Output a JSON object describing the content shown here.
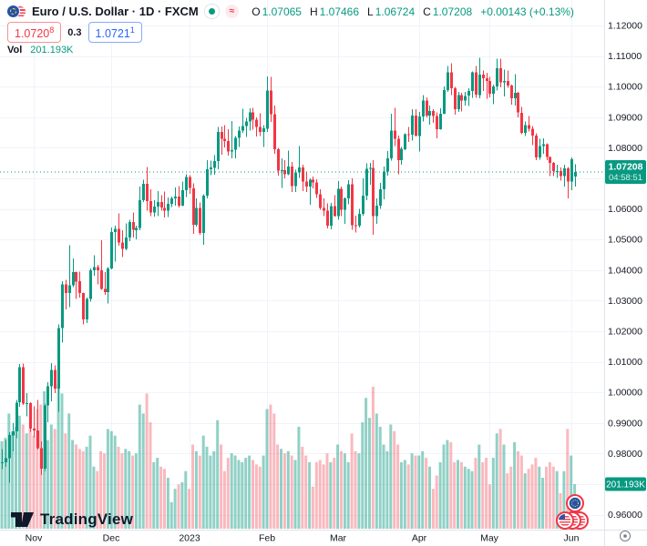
{
  "header": {
    "symbol_title": "Euro / U.S. Dollar · 1D · FXCM",
    "status_approx": "≈",
    "ohlc": {
      "o_label": "O",
      "o": "1.07065",
      "h_label": "H",
      "h": "1.07466",
      "l_label": "L",
      "l": "1.06724",
      "c_label": "C",
      "c": "1.07208",
      "change": "+0.00143 (+0.13%)"
    },
    "bid": "1.0720",
    "bid_sup": "8",
    "spread": "0.3",
    "ask": "1.0721",
    "ask_sup": "1",
    "vol_label": "Vol",
    "vol_value": "201.193K"
  },
  "price_axis": {
    "labels": [
      "1.12000",
      "1.11000",
      "1.10000",
      "1.09000",
      "1.08000",
      "1.07000",
      "1.06000",
      "1.05000",
      "1.04000",
      "1.03000",
      "1.02000",
      "1.01000",
      "1.00000",
      "0.99000",
      "0.98000",
      "0.97000",
      "0.96000"
    ],
    "last_price_badge": {
      "price": "1.07208",
      "countdown": "04:58:51"
    },
    "volume_badge": "201.193K"
  },
  "time_axis": {
    "labels": [
      "Nov",
      "Dec",
      "2023",
      "Feb",
      "Mar",
      "Apr",
      "May",
      "Jun"
    ]
  },
  "footer": {
    "logo_text": "TradingView"
  },
  "colors": {
    "up": "#089981",
    "down": "#F23645",
    "vol_up": "rgba(8,153,129,0.45)",
    "vol_down": "rgba(242,54,69,0.35)",
    "grid": "#f0f3fa",
    "separator": "#e0e3eb",
    "axis_text": "#131722",
    "badge_bg": "#089981",
    "bid_color": "#F23645",
    "ask_color": "#2962FF"
  },
  "chart_data": {
    "type": "candlestick",
    "symbol": "EURUSD",
    "title": "Euro / U.S. Dollar",
    "timeframe": "1D",
    "exchange": "FXCM",
    "last_price": 1.07208,
    "countdown": "04:58:51",
    "current_volume_k": 201.193,
    "volume_unit": "K",
    "axis": {
      "y_min": 0.96,
      "y_max": 1.12,
      "y_step": 0.01
    },
    "legend_position": "top-left",
    "grid": true,
    "candles": [
      [
        "10-19",
        0.977,
        0.9815,
        0.9749,
        0.9772,
        395
      ],
      [
        "10-20",
        0.9772,
        0.9845,
        0.9756,
        0.9785,
        410
      ],
      [
        "10-21",
        0.9785,
        0.987,
        0.9705,
        0.986,
        520
      ],
      [
        "10-24",
        0.986,
        0.9899,
        0.9807,
        0.9873,
        440
      ],
      [
        "10-25",
        0.9873,
        0.9976,
        0.985,
        0.9967,
        460
      ],
      [
        "10-26",
        0.9967,
        1.0093,
        0.9953,
        1.0082,
        510
      ],
      [
        "10-27",
        1.0082,
        1.0094,
        0.9959,
        0.9963,
        470
      ],
      [
        "10-28",
        0.9963,
        0.9997,
        0.9921,
        0.9965,
        430
      ],
      [
        "10-31",
        0.9965,
        0.9968,
        0.9872,
        0.9881,
        450
      ],
      [
        "11-01",
        0.9881,
        0.9954,
        0.9853,
        0.9876,
        420
      ],
      [
        "11-02",
        0.9876,
        0.9976,
        0.9813,
        0.9817,
        540
      ],
      [
        "11-03",
        0.9817,
        0.984,
        0.973,
        0.975,
        560
      ],
      [
        "11-04",
        0.975,
        0.9963,
        0.9741,
        0.9957,
        620
      ],
      [
        "11-07",
        0.9957,
        1.0034,
        0.9902,
        1.002,
        400
      ],
      [
        "11-08",
        1.002,
        1.0096,
        0.9971,
        1.0074,
        470
      ],
      [
        "11-09",
        1.0074,
        1.0088,
        0.9998,
        1.0012,
        450
      ],
      [
        "11-10",
        1.0012,
        1.0222,
        0.9936,
        1.021,
        650
      ],
      [
        "11-11",
        1.021,
        1.0364,
        1.0163,
        1.0353,
        610
      ],
      [
        "11-14",
        1.0353,
        1.0368,
        1.0271,
        1.0325,
        430
      ],
      [
        "11-15",
        1.0325,
        1.0481,
        1.0279,
        1.035,
        520
      ],
      [
        "11-16",
        1.035,
        1.0438,
        1.0344,
        1.0393,
        400
      ],
      [
        "11-17",
        1.0393,
        1.0395,
        1.0305,
        1.0363,
        380
      ],
      [
        "11-18",
        1.0363,
        1.0395,
        1.031,
        1.0325,
        360
      ],
      [
        "11-21",
        1.0325,
        1.0327,
        1.0222,
        1.0239,
        350
      ],
      [
        "11-22",
        1.0239,
        1.031,
        1.0226,
        1.0305,
        370
      ],
      [
        "11-23",
        1.0305,
        1.0405,
        1.0296,
        1.0399,
        420
      ],
      [
        "11-24",
        1.0399,
        1.0448,
        1.0382,
        1.041,
        280
      ],
      [
        "11-25",
        1.041,
        1.0417,
        1.0354,
        1.04,
        260
      ],
      [
        "11-28",
        1.04,
        1.0497,
        1.0335,
        1.0339,
        350
      ],
      [
        "11-29",
        1.0339,
        1.0394,
        1.0319,
        1.0328,
        340
      ],
      [
        "11-30",
        1.0328,
        1.041,
        1.029,
        1.0406,
        450
      ],
      [
        "12-01",
        1.0406,
        1.0539,
        1.0402,
        1.0525,
        440
      ],
      [
        "12-02",
        1.0525,
        1.0545,
        1.0428,
        1.0535,
        420
      ],
      [
        "12-05",
        1.0535,
        1.0585,
        1.048,
        1.049,
        370
      ],
      [
        "12-06",
        1.049,
        1.0531,
        1.0443,
        1.0469,
        340
      ],
      [
        "12-07",
        1.0469,
        1.0552,
        1.0465,
        1.0506,
        360
      ],
      [
        "12-08",
        1.0506,
        1.0564,
        1.0494,
        1.0557,
        350
      ],
      [
        "12-09",
        1.0557,
        1.0589,
        1.0507,
        1.0531,
        330
      ],
      [
        "12-12",
        1.0531,
        1.0545,
        1.05,
        1.0538,
        340
      ],
      [
        "12-13",
        1.0538,
        1.0673,
        1.053,
        1.0629,
        560
      ],
      [
        "12-14",
        1.0629,
        1.0695,
        1.0622,
        1.0682,
        520
      ],
      [
        "12-15",
        1.0682,
        1.0737,
        1.0594,
        1.0626,
        610
      ],
      [
        "12-16",
        1.0626,
        1.0664,
        1.0576,
        1.0588,
        480
      ],
      [
        "12-19",
        1.0588,
        1.0628,
        1.0575,
        1.0607,
        300
      ],
      [
        "12-20",
        1.0607,
        1.0658,
        1.0576,
        1.0622,
        320
      ],
      [
        "12-21",
        1.0622,
        1.0645,
        1.0594,
        1.0604,
        280
      ],
      [
        "12-22",
        1.0604,
        1.0657,
        1.0572,
        1.0594,
        270
      ],
      [
        "12-23",
        1.0594,
        1.0637,
        1.0574,
        1.0617,
        230
      ],
      [
        "12-26",
        1.0617,
        1.064,
        1.0606,
        1.0635,
        120
      ],
      [
        "12-27",
        1.0635,
        1.067,
        1.0611,
        1.064,
        180
      ],
      [
        "12-28",
        1.064,
        1.0674,
        1.0604,
        1.0611,
        200
      ],
      [
        "12-29",
        1.0611,
        1.069,
        1.0609,
        1.0661,
        210
      ],
      [
        "12-30",
        1.0661,
        1.0713,
        1.0639,
        1.0705,
        260
      ],
      [
        "01-02",
        1.0705,
        1.071,
        1.065,
        1.0668,
        180
      ],
      [
        "01-03",
        1.0668,
        1.0683,
        1.0519,
        1.0548,
        380
      ],
      [
        "01-04",
        1.0548,
        1.0635,
        1.0542,
        1.0603,
        350
      ],
      [
        "01-05",
        1.0603,
        1.0621,
        1.0515,
        1.0522,
        330
      ],
      [
        "01-06",
        1.0522,
        1.0648,
        1.0483,
        1.0644,
        420
      ],
      [
        "01-09",
        1.0644,
        1.076,
        1.0634,
        1.073,
        370
      ],
      [
        "01-10",
        1.073,
        1.0758,
        1.0711,
        1.0735,
        330
      ],
      [
        "01-11",
        1.0735,
        1.0776,
        1.0712,
        1.0756,
        350
      ],
      [
        "01-12",
        1.0756,
        1.0868,
        1.073,
        1.0852,
        490
      ],
      [
        "01-13",
        1.0852,
        1.0869,
        1.0778,
        1.083,
        380
      ],
      [
        "01-16",
        1.083,
        1.0874,
        1.0801,
        1.0822,
        260
      ],
      [
        "01-17",
        1.0822,
        1.086,
        1.0775,
        1.0788,
        320
      ],
      [
        "01-18",
        1.0788,
        1.0887,
        1.0766,
        1.0793,
        340
      ],
      [
        "01-19",
        1.0793,
        1.0838,
        1.0766,
        1.0832,
        330
      ],
      [
        "01-20",
        1.0832,
        1.087,
        1.0802,
        1.0856,
        310
      ],
      [
        "01-23",
        1.0856,
        1.0927,
        1.0848,
        1.0871,
        300
      ],
      [
        "01-24",
        1.0871,
        1.0898,
        1.0835,
        1.0886,
        320
      ],
      [
        "01-25",
        1.0886,
        1.0929,
        1.0857,
        1.0916,
        330
      ],
      [
        "01-26",
        1.0916,
        1.093,
        1.0859,
        1.0892,
        310
      ],
      [
        "01-27",
        1.0892,
        1.09,
        1.0837,
        1.0868,
        290
      ],
      [
        "01-30",
        1.0868,
        1.0913,
        1.0838,
        1.0852,
        280
      ],
      [
        "01-31",
        1.0852,
        1.0874,
        1.0802,
        1.0863,
        330
      ],
      [
        "02-01",
        1.0863,
        1.1033,
        1.0852,
        1.0987,
        540
      ],
      [
        "02-02",
        1.0987,
        1.1032,
        1.0885,
        1.091,
        560
      ],
      [
        "02-03",
        1.091,
        1.0938,
        1.078,
        1.0795,
        520
      ],
      [
        "02-06",
        1.0795,
        1.08,
        1.0709,
        1.0725,
        380
      ],
      [
        "02-07",
        1.0725,
        1.0766,
        1.0669,
        1.0727,
        360
      ],
      [
        "02-08",
        1.0727,
        1.0759,
        1.07,
        1.0713,
        340
      ],
      [
        "02-09",
        1.0713,
        1.0791,
        1.071,
        1.0738,
        350
      ],
      [
        "02-10",
        1.0738,
        1.0753,
        1.0656,
        1.0675,
        330
      ],
      [
        "02-13",
        1.0675,
        1.0729,
        1.0656,
        1.072,
        310
      ],
      [
        "02-14",
        1.072,
        1.0805,
        1.0702,
        1.0736,
        460
      ],
      [
        "02-15",
        1.0736,
        1.0744,
        1.0659,
        1.069,
        370
      ],
      [
        "02-16",
        1.069,
        1.0721,
        1.0655,
        1.0673,
        330
      ],
      [
        "02-17",
        1.0673,
        1.07,
        1.0613,
        1.0695,
        300
      ],
      [
        "02-20",
        1.0695,
        1.0706,
        1.0668,
        1.0686,
        190
      ],
      [
        "02-21",
        1.0686,
        1.0697,
        1.0636,
        1.0648,
        300
      ],
      [
        "02-22",
        1.0648,
        1.0665,
        1.0598,
        1.0604,
        310
      ],
      [
        "02-23",
        1.0604,
        1.0635,
        1.0577,
        1.0595,
        290
      ],
      [
        "02-24",
        1.0595,
        1.0618,
        1.0536,
        1.0546,
        340
      ],
      [
        "02-27",
        1.0546,
        1.062,
        1.0533,
        1.0609,
        300
      ],
      [
        "02-28",
        1.0609,
        1.0645,
        1.0575,
        1.0577,
        320
      ],
      [
        "03-01",
        1.0577,
        1.0691,
        1.0565,
        1.0666,
        380
      ],
      [
        "03-02",
        1.0666,
        1.0673,
        1.0577,
        1.0597,
        350
      ],
      [
        "03-03",
        1.0597,
        1.0638,
        1.0551,
        1.0634,
        340
      ],
      [
        "03-06",
        1.0634,
        1.0694,
        1.0615,
        1.068,
        300
      ],
      [
        "03-07",
        1.068,
        1.07,
        1.0532,
        1.0547,
        430
      ],
      [
        "03-08",
        1.0547,
        1.0578,
        1.0523,
        1.0545,
        350
      ],
      [
        "03-09",
        1.0545,
        1.06,
        1.054,
        1.0584,
        340
      ],
      [
        "03-10",
        1.0584,
        1.07,
        1.0578,
        1.0643,
        480
      ],
      [
        "03-13",
        1.0643,
        1.0749,
        1.0628,
        1.0731,
        590
      ],
      [
        "03-14",
        1.0731,
        1.075,
        1.0679,
        1.0734,
        500
      ],
      [
        "03-15",
        1.0734,
        1.076,
        1.0516,
        1.0577,
        640
      ],
      [
        "03-16",
        1.0577,
        1.0635,
        1.0551,
        1.0611,
        520
      ],
      [
        "03-17",
        1.0611,
        1.0685,
        1.06,
        1.0665,
        460
      ],
      [
        "03-20",
        1.0665,
        1.0738,
        1.0632,
        1.0722,
        380
      ],
      [
        "03-21",
        1.0722,
        1.0789,
        1.0709,
        1.0766,
        350
      ],
      [
        "03-22",
        1.0766,
        1.0912,
        1.0758,
        1.0856,
        470
      ],
      [
        "03-23",
        1.0856,
        1.093,
        1.0805,
        1.083,
        440
      ],
      [
        "03-24",
        1.083,
        1.084,
        1.0713,
        1.076,
        380
      ],
      [
        "03-27",
        1.076,
        1.0803,
        1.0745,
        1.0796,
        300
      ],
      [
        "03-28",
        1.0796,
        1.0848,
        1.0792,
        1.0845,
        310
      ],
      [
        "03-29",
        1.0845,
        1.0868,
        1.0819,
        1.0843,
        290
      ],
      [
        "03-30",
        1.0843,
        1.0926,
        1.0824,
        1.0905,
        340
      ],
      [
        "03-31",
        1.0905,
        1.0926,
        1.0838,
        1.0839,
        330
      ],
      [
        "04-03",
        1.0839,
        1.0918,
        1.0788,
        1.0902,
        330
      ],
      [
        "04-04",
        1.0902,
        1.0973,
        1.0886,
        1.0954,
        350
      ],
      [
        "04-05",
        1.0954,
        1.0965,
        1.0899,
        1.0905,
        320
      ],
      [
        "04-06",
        1.0905,
        1.0938,
        1.0876,
        1.092,
        280
      ],
      [
        "04-07",
        1.092,
        1.0926,
        1.0881,
        1.0904,
        180
      ],
      [
        "04-10",
        1.0904,
        1.0916,
        1.0831,
        1.0861,
        240
      ],
      [
        "04-11",
        1.0861,
        1.0929,
        1.0859,
        1.0912,
        300
      ],
      [
        "04-12",
        1.0912,
        1.1,
        1.091,
        1.0989,
        380
      ],
      [
        "04-13",
        1.0989,
        1.1068,
        1.0983,
        1.1046,
        400
      ],
      [
        "04-14",
        1.1046,
        1.1076,
        1.0973,
        1.0995,
        390
      ],
      [
        "04-17",
        1.0995,
        1.0999,
        1.0908,
        1.0926,
        300
      ],
      [
        "04-18",
        1.0926,
        1.0983,
        1.0917,
        1.0972,
        310
      ],
      [
        "04-19",
        1.0972,
        1.098,
        1.0918,
        1.0955,
        300
      ],
      [
        "04-20",
        1.0955,
        1.0983,
        1.0938,
        1.097,
        280
      ],
      [
        "04-21",
        1.097,
        1.0995,
        1.0937,
        1.0985,
        270
      ],
      [
        "04-24",
        1.0985,
        1.105,
        1.0963,
        1.1046,
        260
      ],
      [
        "04-25",
        1.1046,
        1.1067,
        1.0964,
        1.0973,
        320
      ],
      [
        "04-26",
        1.0973,
        1.1095,
        1.0962,
        1.1039,
        380
      ],
      [
        "04-27",
        1.1039,
        1.1052,
        1.0985,
        1.1028,
        300
      ],
      [
        "04-28",
        1.1028,
        1.1045,
        1.0961,
        1.1018,
        320
      ],
      [
        "05-01",
        1.1018,
        1.1032,
        1.0964,
        1.0977,
        200
      ],
      [
        "05-02",
        1.0977,
        1.1007,
        1.0942,
        1.1,
        320
      ],
      [
        "05-03",
        1.1,
        1.1091,
        1.0987,
        1.106,
        430
      ],
      [
        "05-04",
        1.106,
        1.1092,
        1.0998,
        1.1014,
        450
      ],
      [
        "05-05",
        1.1014,
        1.1056,
        1.0968,
        1.1018,
        380
      ],
      [
        "05-08",
        1.1018,
        1.1052,
        1.0996,
        1.1004,
        250
      ],
      [
        "05-09",
        1.1004,
        1.1006,
        1.0941,
        1.0962,
        280
      ],
      [
        "05-10",
        1.0962,
        1.1041,
        1.0938,
        1.098,
        390
      ],
      [
        "05-11",
        1.098,
        1.0982,
        1.0899,
        1.0915,
        350
      ],
      [
        "05-12",
        1.0915,
        1.0934,
        1.0845,
        1.0849,
        330
      ],
      [
        "05-15",
        1.0849,
        1.0886,
        1.0839,
        1.0874,
        250
      ],
      [
        "05-16",
        1.0874,
        1.0904,
        1.0853,
        1.0862,
        270
      ],
      [
        "05-17",
        1.0862,
        1.0871,
        1.0808,
        1.084,
        290
      ],
      [
        "05-18",
        1.084,
        1.0848,
        1.076,
        1.0769,
        320
      ],
      [
        "05-19",
        1.0769,
        1.0829,
        1.0761,
        1.0805,
        280
      ],
      [
        "05-22",
        1.0805,
        1.0831,
        1.0781,
        1.0811,
        230
      ],
      [
        "05-23",
        1.0811,
        1.0815,
        1.0759,
        1.077,
        280
      ],
      [
        "05-24",
        1.077,
        1.0772,
        1.0707,
        1.0751,
        300
      ],
      [
        "05-25",
        1.0751,
        1.0753,
        1.0708,
        1.0724,
        280
      ],
      [
        "05-26",
        1.0724,
        1.0745,
        1.0701,
        1.0724,
        260
      ],
      [
        "05-29",
        1.0724,
        1.0735,
        1.0693,
        1.0707,
        160
      ],
      [
        "05-30",
        1.0707,
        1.0745,
        1.0674,
        1.0733,
        260
      ],
      [
        "05-31",
        1.0733,
        1.0737,
        1.0635,
        1.0689,
        450
      ],
      [
        "06-01",
        1.0689,
        1.0768,
        1.0661,
        1.0762,
        330
      ],
      [
        "06-02",
        1.07065,
        1.07466,
        1.06724,
        1.07208,
        201.193
      ]
    ]
  }
}
